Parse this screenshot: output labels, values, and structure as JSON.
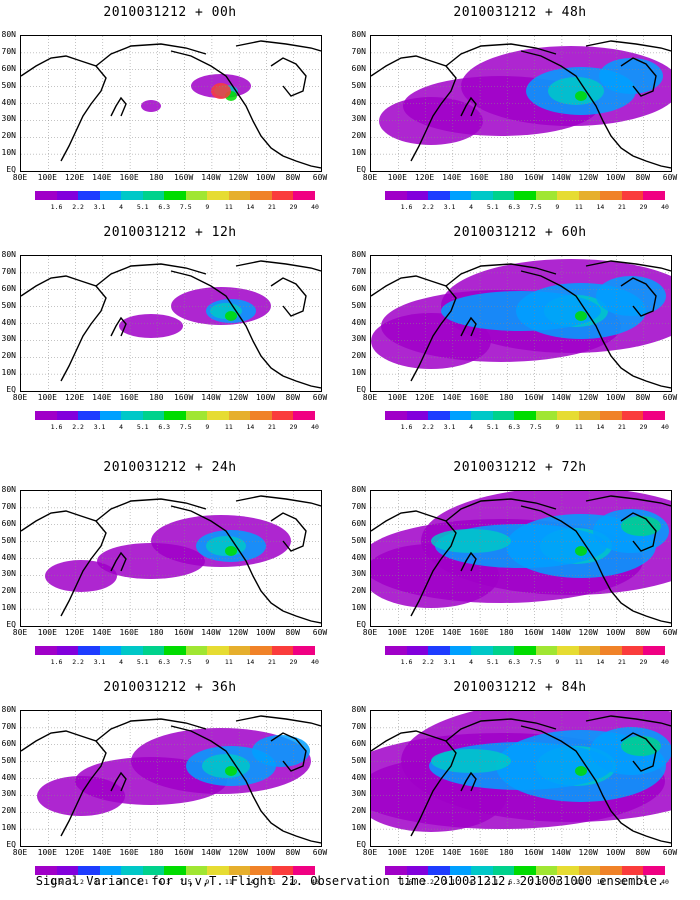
{
  "figure": {
    "caption": "Signal Variance for u,v,T. Flight 21. Observation time 2010031212. 2010031000 ensemble."
  },
  "lat_labels": [
    "80N",
    "70N",
    "60N",
    "50N",
    "40N",
    "30N",
    "20N",
    "10N",
    "EQ"
  ],
  "lon_labels": [
    "80E",
    "100E",
    "120E",
    "140E",
    "160E",
    "180",
    "160W",
    "140W",
    "120W",
    "100W",
    "80W",
    "60W"
  ],
  "colorbar": {
    "levels": [
      "1.6",
      "2.2",
      "3.1",
      "4",
      "5.1",
      "6.3",
      "7.5",
      "9",
      "11",
      "14",
      "21",
      "29",
      "40"
    ],
    "colors": [
      "#a000c8",
      "#8200dc",
      "#1e3cff",
      "#00a0ff",
      "#00c8c8",
      "#00d28c",
      "#00dc00",
      "#a0e632",
      "#e6dc32",
      "#e6af2d",
      "#f08228",
      "#fa3c3c",
      "#f00082"
    ]
  },
  "panels": [
    {
      "title": "2010031212 + 00h",
      "intensity": 0
    },
    {
      "title": "2010031212 + 12h",
      "intensity": 1
    },
    {
      "title": "2010031212 + 24h",
      "intensity": 2
    },
    {
      "title": "2010031212 + 36h",
      "intensity": 3
    },
    {
      "title": "2010031212 + 48h",
      "intensity": 4
    },
    {
      "title": "2010031212 + 60h",
      "intensity": 5
    },
    {
      "title": "2010031212 + 72h",
      "intensity": 6
    },
    {
      "title": "2010031212 + 84h",
      "intensity": 7
    }
  ]
}
